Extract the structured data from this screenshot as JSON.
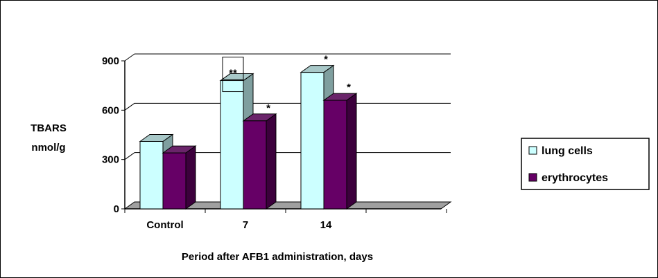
{
  "chart_data": {
    "type": "bar",
    "xlabel": "Period after AFB1 administration, days",
    "ylabel_lines": [
      "TBARS",
      "nmol/g"
    ],
    "categories": [
      "Control",
      "7",
      "14",
      ""
    ],
    "ylim": [
      0,
      900
    ],
    "yticks": [
      0,
      300,
      600,
      900
    ],
    "grid": true,
    "legend_position": "right",
    "series": [
      {
        "name": "lung cells",
        "color": "#ccffff",
        "values": [
          410,
          780,
          830,
          null
        ],
        "annotations": [
          "",
          "**",
          "*",
          ""
        ]
      },
      {
        "name": "erythrocytes",
        "color": "#660066",
        "values": [
          340,
          535,
          660,
          null
        ],
        "annotations": [
          "",
          "*",
          "*",
          ""
        ]
      }
    ]
  }
}
